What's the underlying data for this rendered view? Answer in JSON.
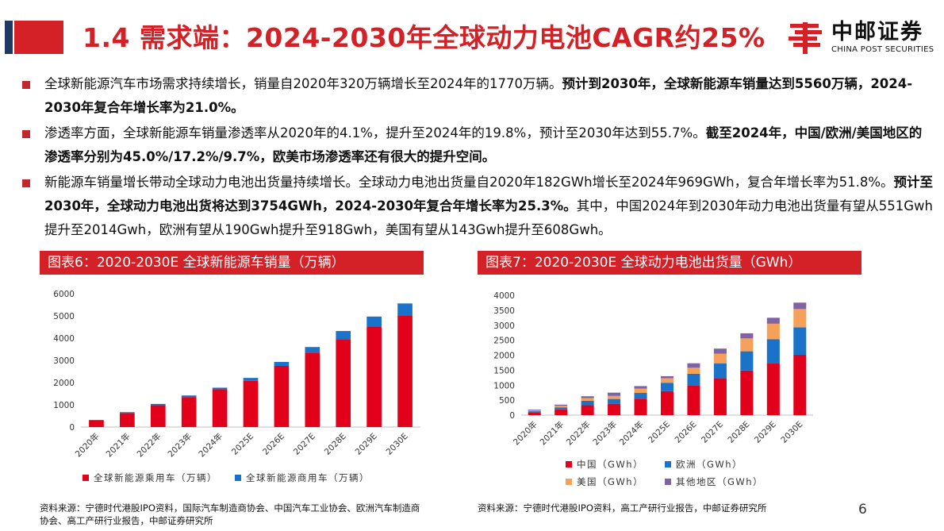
{
  "header": {
    "title": "1.4 需求端：2024-2030年全球动力电池CAGR约25%",
    "logo_cn": "中邮证券",
    "logo_en": "CHINA POST SECURITIES"
  },
  "bullets": [
    {
      "parts": [
        {
          "text": "全球新能源汽车市场需求持续增长，销量自2020年320万辆增长至2024年的1770万辆。",
          "bold": false
        },
        {
          "text": "预计到2030年，全球新能源车销量达到5560万辆，2024-2030年复合年增长率为21.0%。",
          "bold": true
        }
      ]
    },
    {
      "parts": [
        {
          "text": "渗透率方面，全球新能源车销量渗透率从2020年的4.1%，提升至2024年的19.8%，预计至2030年达到55.7%。",
          "bold": false
        },
        {
          "text": "截至2024年，中国/欧洲/美国地区的渗透率分别为45.0%/17.2%/9.7%，欧美市场渗透率还有很大的提升空间。",
          "bold": true
        }
      ]
    },
    {
      "parts": [
        {
          "text": "新能源车销量增长带动全球动力电池出货量持续增长。全球动力电池出货量自2020年182GWh增长至2024年969GWh，复合年增长率为51.8%。",
          "bold": false
        },
        {
          "text": "预计至2030年，全球动力电池出货将达到3754GWh，2024-2030年复合年增长率为25.3%。",
          "bold": true
        },
        {
          "text": "其中，中国2024年到2030年动力电池出货量有望从551Gwh提升至2014Gwh，欧洲有望从190Gwh提升至918Gwh，美国有望从143Gwh提升至608Gwh。",
          "bold": false
        }
      ]
    }
  ],
  "figures": {
    "fig6_title": "图表6：2020-2030E 全球新能源车销量（万辆）",
    "fig7_title": "图表7：2020-2030E 全球动力电池出货量（GWh）",
    "fig6_source": "资料来源：宁德时代港股IPO资料，国际汽车制造商协会、中国汽车工业协会、欧洲汽车制造商协会、高工产研行业报告，中邮证券研究所",
    "fig7_source": "资料来源：宁德时代港股IPO资料，高工产研行业报告，中邮证券研究所"
  },
  "page_number": "6",
  "chart_data": [
    {
      "type": "bar",
      "stacked": true,
      "categories": [
        "2020年",
        "2021年",
        "2022年",
        "2023年",
        "2024年",
        "2025E",
        "2026E",
        "2027E",
        "2028E",
        "2029E",
        "2030E"
      ],
      "series": [
        {
          "name": "全球新能源乘用车（万辆）",
          "color": "#e3001b",
          "values": [
            300,
            630,
            980,
            1350,
            1700,
            2080,
            2750,
            3350,
            3950,
            4520,
            5030
          ]
        },
        {
          "name": "全球新能源商用车（万辆）",
          "color": "#1a73c9",
          "values": [
            20,
            40,
            60,
            70,
            70,
            130,
            180,
            250,
            370,
            450,
            530
          ]
        }
      ],
      "ylim": [
        0,
        6000
      ],
      "yticks": [
        0,
        1000,
        2000,
        3000,
        4000,
        5000,
        6000
      ],
      "legend_position": "bottom",
      "grid": false
    },
    {
      "type": "bar",
      "stacked": true,
      "categories": [
        "2020年",
        "2021年",
        "2022年",
        "2023年",
        "2024年",
        "2025E",
        "2026E",
        "2027E",
        "2028E",
        "2029E",
        "2030E"
      ],
      "series": [
        {
          "name": "中国（GWh）",
          "color": "#e3001b",
          "values": [
            90,
            190,
            330,
            380,
            551,
            800,
            1000,
            1230,
            1490,
            1740,
            2014
          ]
        },
        {
          "name": "欧洲（GWh）",
          "color": "#1a73c9",
          "values": [
            40,
            70,
            150,
            160,
            190,
            280,
            380,
            500,
            640,
            790,
            918
          ]
        },
        {
          "name": "美国（GWh）",
          "color": "#f6a15a",
          "values": [
            25,
            50,
            90,
            100,
            143,
            150,
            200,
            320,
            430,
            520,
            608
          ]
        },
        {
          "name": "其他地区（GWh）",
          "color": "#8064a2",
          "values": [
            27,
            40,
            60,
            110,
            85,
            70,
            150,
            170,
            170,
            200,
            214
          ]
        }
      ],
      "ylim": [
        0,
        4000
      ],
      "yticks": [
        0,
        500,
        1000,
        1500,
        2000,
        2500,
        3000,
        3500,
        4000
      ],
      "legend_position": "bottom",
      "grid": false
    }
  ]
}
